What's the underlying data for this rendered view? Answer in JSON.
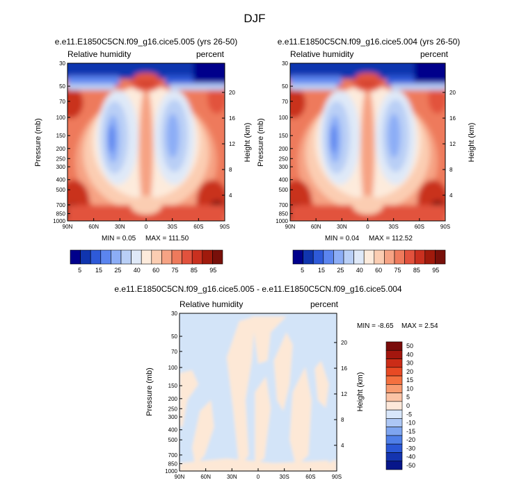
{
  "figure": {
    "title": "DJF"
  },
  "chart_data": [
    {
      "type": "heatmap",
      "panel": "top-left",
      "title": "e.e11.E1850C5CN.f09_g16.cice5.005 (yrs 26-50)",
      "left_label": "Relative humidity",
      "right_label": "percent",
      "xlabel": "",
      "ylabel": "Pressure (mb)",
      "y2label": "Height (km)",
      "x_ticks": [
        "90N",
        "60N",
        "30N",
        "0",
        "30S",
        "60S",
        "90S"
      ],
      "y_ticks": [
        {
          "p": 30,
          "label": "30"
        },
        {
          "p": 50,
          "label": "50"
        },
        {
          "p": 70,
          "label": "70"
        },
        {
          "p": 100,
          "label": "100"
        },
        {
          "p": 150,
          "label": "150"
        },
        {
          "p": 200,
          "label": "200"
        },
        {
          "p": 250,
          "label": "250"
        },
        {
          "p": 300,
          "label": "300"
        },
        {
          "p": 400,
          "label": "400"
        },
        {
          "p": 500,
          "label": "500"
        },
        {
          "p": 700,
          "label": "700"
        },
        {
          "p": 850,
          "label": "850"
        },
        {
          "p": 1000,
          "label": "1000"
        }
      ],
      "height_ticks": [
        {
          "h": 20,
          "label": "20"
        },
        {
          "h": 16,
          "label": "16"
        },
        {
          "h": 12,
          "label": "12"
        },
        {
          "h": 8,
          "label": "8"
        },
        {
          "h": 4,
          "label": "4"
        }
      ],
      "min": 0.05,
      "max": 111.5,
      "min_label": "MIN =  0.05",
      "max_label": "MAX = 111.50",
      "colorbar_labels": [
        "5",
        "15",
        "25",
        "40",
        "60",
        "75",
        "85",
        "95"
      ]
    },
    {
      "type": "heatmap",
      "panel": "top-right",
      "title": "e.e11.E1850C5CN.f09_g16.cice5.004 (yrs 26-50)",
      "left_label": "Relative humidity",
      "right_label": "percent",
      "xlabel": "",
      "ylabel": "Pressure (mb)",
      "y2label": "Height (km)",
      "x_ticks": [
        "90N",
        "60N",
        "30N",
        "0",
        "30S",
        "60S",
        "90S"
      ],
      "y_ticks": [
        {
          "p": 30,
          "label": "30"
        },
        {
          "p": 50,
          "label": "50"
        },
        {
          "p": 70,
          "label": "70"
        },
        {
          "p": 100,
          "label": "100"
        },
        {
          "p": 150,
          "label": "150"
        },
        {
          "p": 200,
          "label": "200"
        },
        {
          "p": 250,
          "label": "250"
        },
        {
          "p": 300,
          "label": "300"
        },
        {
          "p": 400,
          "label": "400"
        },
        {
          "p": 500,
          "label": "500"
        },
        {
          "p": 700,
          "label": "700"
        },
        {
          "p": 850,
          "label": "850"
        },
        {
          "p": 1000,
          "label": "1000"
        }
      ],
      "height_ticks": [
        {
          "h": 20,
          "label": "20"
        },
        {
          "h": 16,
          "label": "16"
        },
        {
          "h": 12,
          "label": "12"
        },
        {
          "h": 8,
          "label": "8"
        },
        {
          "h": 4,
          "label": "4"
        }
      ],
      "min": 0.04,
      "max": 112.52,
      "min_label": "MIN =  0.04",
      "max_label": "MAX = 112.52",
      "colorbar_labels": [
        "5",
        "15",
        "25",
        "40",
        "60",
        "75",
        "85",
        "95"
      ]
    },
    {
      "type": "heatmap",
      "panel": "bottom-difference",
      "title": "e.e11.E1850C5CN.f09_g16.cice5.005 - e.e11.E1850C5CN.f09_g16.cice5.004",
      "left_label": "Relative humidity",
      "right_label": "percent",
      "xlabel": "",
      "ylabel": "Pressure (mb)",
      "y2label": "Height (km)",
      "x_ticks": [
        "90N",
        "60N",
        "30N",
        "0",
        "30S",
        "60S",
        "90S"
      ],
      "y_ticks": [
        {
          "p": 30,
          "label": "30"
        },
        {
          "p": 50,
          "label": "50"
        },
        {
          "p": 70,
          "label": "70"
        },
        {
          "p": 100,
          "label": "100"
        },
        {
          "p": 150,
          "label": "150"
        },
        {
          "p": 200,
          "label": "200"
        },
        {
          "p": 250,
          "label": "250"
        },
        {
          "p": 300,
          "label": "300"
        },
        {
          "p": 400,
          "label": "400"
        },
        {
          "p": 500,
          "label": "500"
        },
        {
          "p": 700,
          "label": "700"
        },
        {
          "p": 850,
          "label": "850"
        },
        {
          "p": 1000,
          "label": "1000"
        }
      ],
      "height_ticks": [
        {
          "h": 20,
          "label": "20"
        },
        {
          "h": 16,
          "label": "16"
        },
        {
          "h": 12,
          "label": "12"
        },
        {
          "h": 8,
          "label": "8"
        },
        {
          "h": 4,
          "label": "4"
        }
      ],
      "min": -8.65,
      "max": 2.54,
      "min_label": "MIN = -8.65",
      "max_label": "MAX =  2.54",
      "colorbar_labels": [
        "50",
        "40",
        "30",
        "20",
        "15",
        "10",
        "5",
        "0",
        "-5",
        "-10",
        "-15",
        "-20",
        "-30",
        "-40",
        "-50"
      ]
    }
  ],
  "colors": {
    "field_scale": [
      "#00008b",
      "#1035ae",
      "#2e5ad8",
      "#5b85ef",
      "#8cadf6",
      "#b9cff6",
      "#dfe9f8",
      "#fdebdc",
      "#fbcdb2",
      "#f6a384",
      "#ee7a5c",
      "#e2523d",
      "#c9301f",
      "#a01a0c",
      "#78100a"
    ],
    "diff_scale": [
      "#7a0b0a",
      "#a3160e",
      "#cb2c17",
      "#e84a24",
      "#f4703f",
      "#f89b70",
      "#fbc3a5",
      "#fde8da",
      "#d8e6fa",
      "#adc7f5",
      "#7ea5f0",
      "#4f7fe8",
      "#2a57d6",
      "#1434b0",
      "#07168a"
    ],
    "diff_pos": "#fde8d6",
    "diff_neg": "#d3e4f8"
  }
}
